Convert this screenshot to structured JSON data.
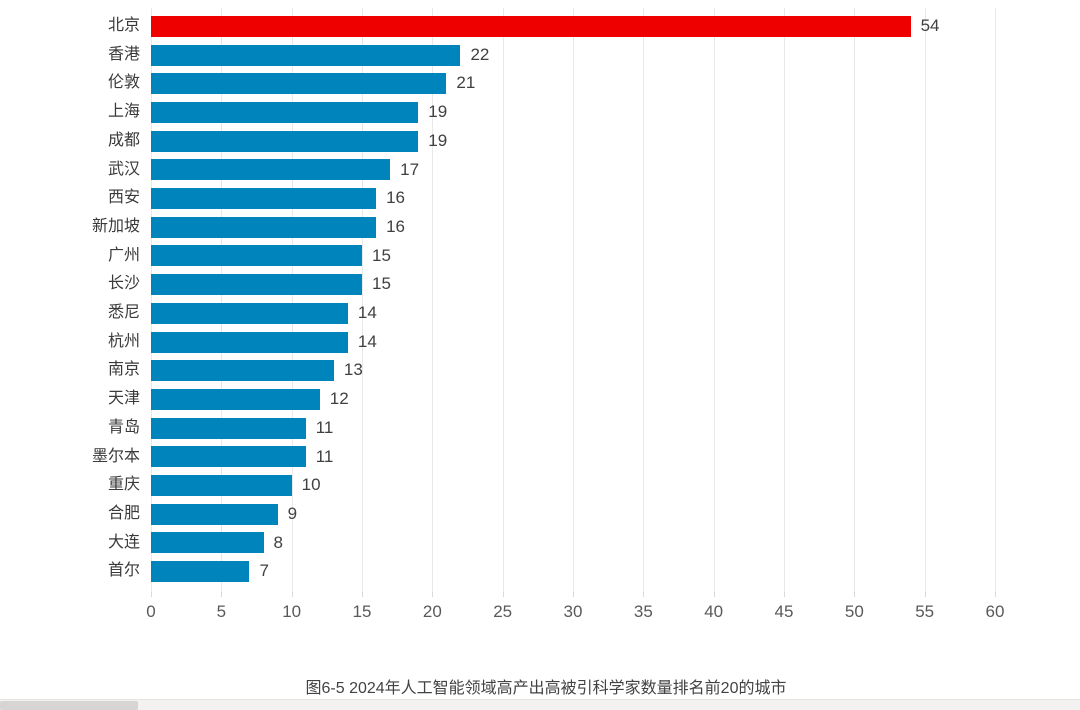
{
  "chart_data": {
    "type": "bar",
    "orientation": "horizontal",
    "title": "图6-5 2024年人工智能领域高产出高被引科学家数量排名前20的城市",
    "categories": [
      "北京",
      "香港",
      "伦敦",
      "上海",
      "成都",
      "武汉",
      "西安",
      "新加坡",
      "广州",
      "长沙",
      "悉尼",
      "杭州",
      "南京",
      "天津",
      "青岛",
      "墨尔本",
      "重庆",
      "合肥",
      "大连",
      "首尔"
    ],
    "values": [
      54,
      22,
      21,
      19,
      19,
      17,
      16,
      16,
      15,
      15,
      14,
      14,
      13,
      12,
      11,
      11,
      10,
      9,
      8,
      7
    ],
    "value_labels": [
      "54",
      "22",
      "21",
      "19",
      "19",
      "17",
      "16",
      "16",
      "15",
      "15",
      "14",
      "14",
      "13",
      "12",
      "11",
      "11",
      "10",
      "9",
      "8",
      "7"
    ],
    "xlabel": "",
    "ylabel": "",
    "xlim": [
      0,
      60
    ],
    "x_ticks": [
      0,
      5,
      10,
      15,
      20,
      25,
      30,
      35,
      40,
      45,
      50,
      55,
      60
    ],
    "x_tick_labels": [
      "0",
      "5",
      "10",
      "15",
      "20",
      "25",
      "30",
      "35",
      "40",
      "45",
      "50",
      "55",
      "60"
    ],
    "grid": true,
    "legend": "none",
    "highlight_category": "北京",
    "colors": {
      "bar": "#0084bc",
      "highlight_bar": "#ee0000",
      "gridline": "#e8e8e8",
      "tick_text": "#595959",
      "category_text": "#3a3a3a",
      "value_text": "#404040",
      "caption_text": "#424242"
    }
  }
}
